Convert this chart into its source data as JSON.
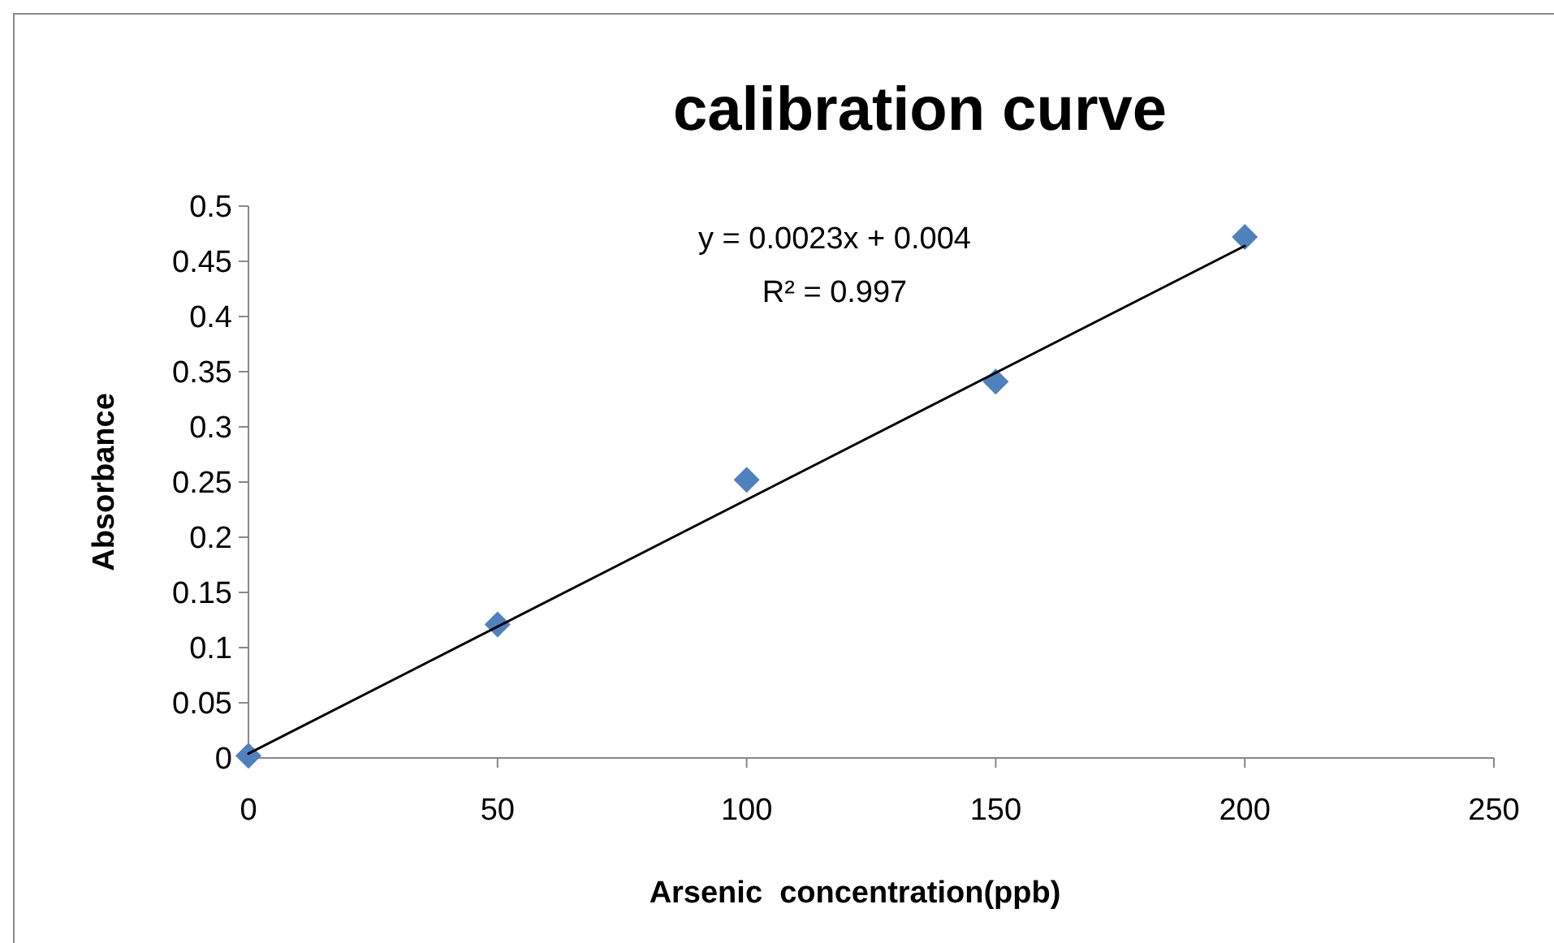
{
  "chart_data": {
    "type": "scatter",
    "title": "calibration curve",
    "xlabel": "Arsenic  concentration(ppb)",
    "ylabel": "Absorbance",
    "annotations": [
      "y = 0.0023x + 0.004",
      "R² = 0.997"
    ],
    "x": [
      0,
      50,
      100,
      150,
      200
    ],
    "series": [
      {
        "color": "#4f81bd",
        "marker": "diamond",
        "values": [
          0.002,
          0.121,
          0.252,
          0.341,
          0.472
        ]
      },
      {
        "type": "line",
        "color": "#000000",
        "marker": "none",
        "x": [
          0,
          200
        ],
        "values": [
          0.004,
          0.464
        ]
      }
    ],
    "xlim": [
      0,
      250
    ],
    "xticks": [
      0,
      50,
      100,
      150,
      200,
      250
    ],
    "ylim": [
      0,
      0.5
    ],
    "yticks": [
      0,
      0.05,
      0.1,
      0.15,
      0.2,
      0.25,
      0.3,
      0.35,
      0.4,
      0.45,
      0.5
    ],
    "grid": false
  }
}
